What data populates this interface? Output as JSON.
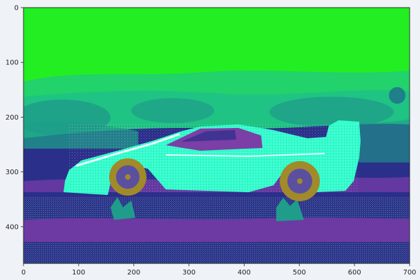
{
  "figure": {
    "image_semantic": "posterized false-color photo of a side-view sports car",
    "palette": {
      "sky": "#22ee22",
      "haze": "#22cc77",
      "teal": "#1f9d8a",
      "navy": "#2a2f8a",
      "purple": "#7b3fa6",
      "ground": "#6d3aa3",
      "car_body": "#33ffcc",
      "tire": "#a08a2a",
      "hub": "#5b4fa0",
      "white": "#ffffff"
    }
  },
  "x_axis": {
    "ticks": [
      "0",
      "100",
      "200",
      "300",
      "400",
      "500",
      "600",
      "700"
    ],
    "tick_values": [
      0,
      100,
      200,
      300,
      400,
      500,
      600,
      700
    ],
    "range": [
      0,
      700
    ]
  },
  "y_axis": {
    "ticks": [
      "0",
      "100",
      "200",
      "300",
      "400"
    ],
    "tick_values": [
      0,
      100,
      200,
      300,
      400
    ],
    "range": [
      0,
      467
    ],
    "inverted": true
  }
}
